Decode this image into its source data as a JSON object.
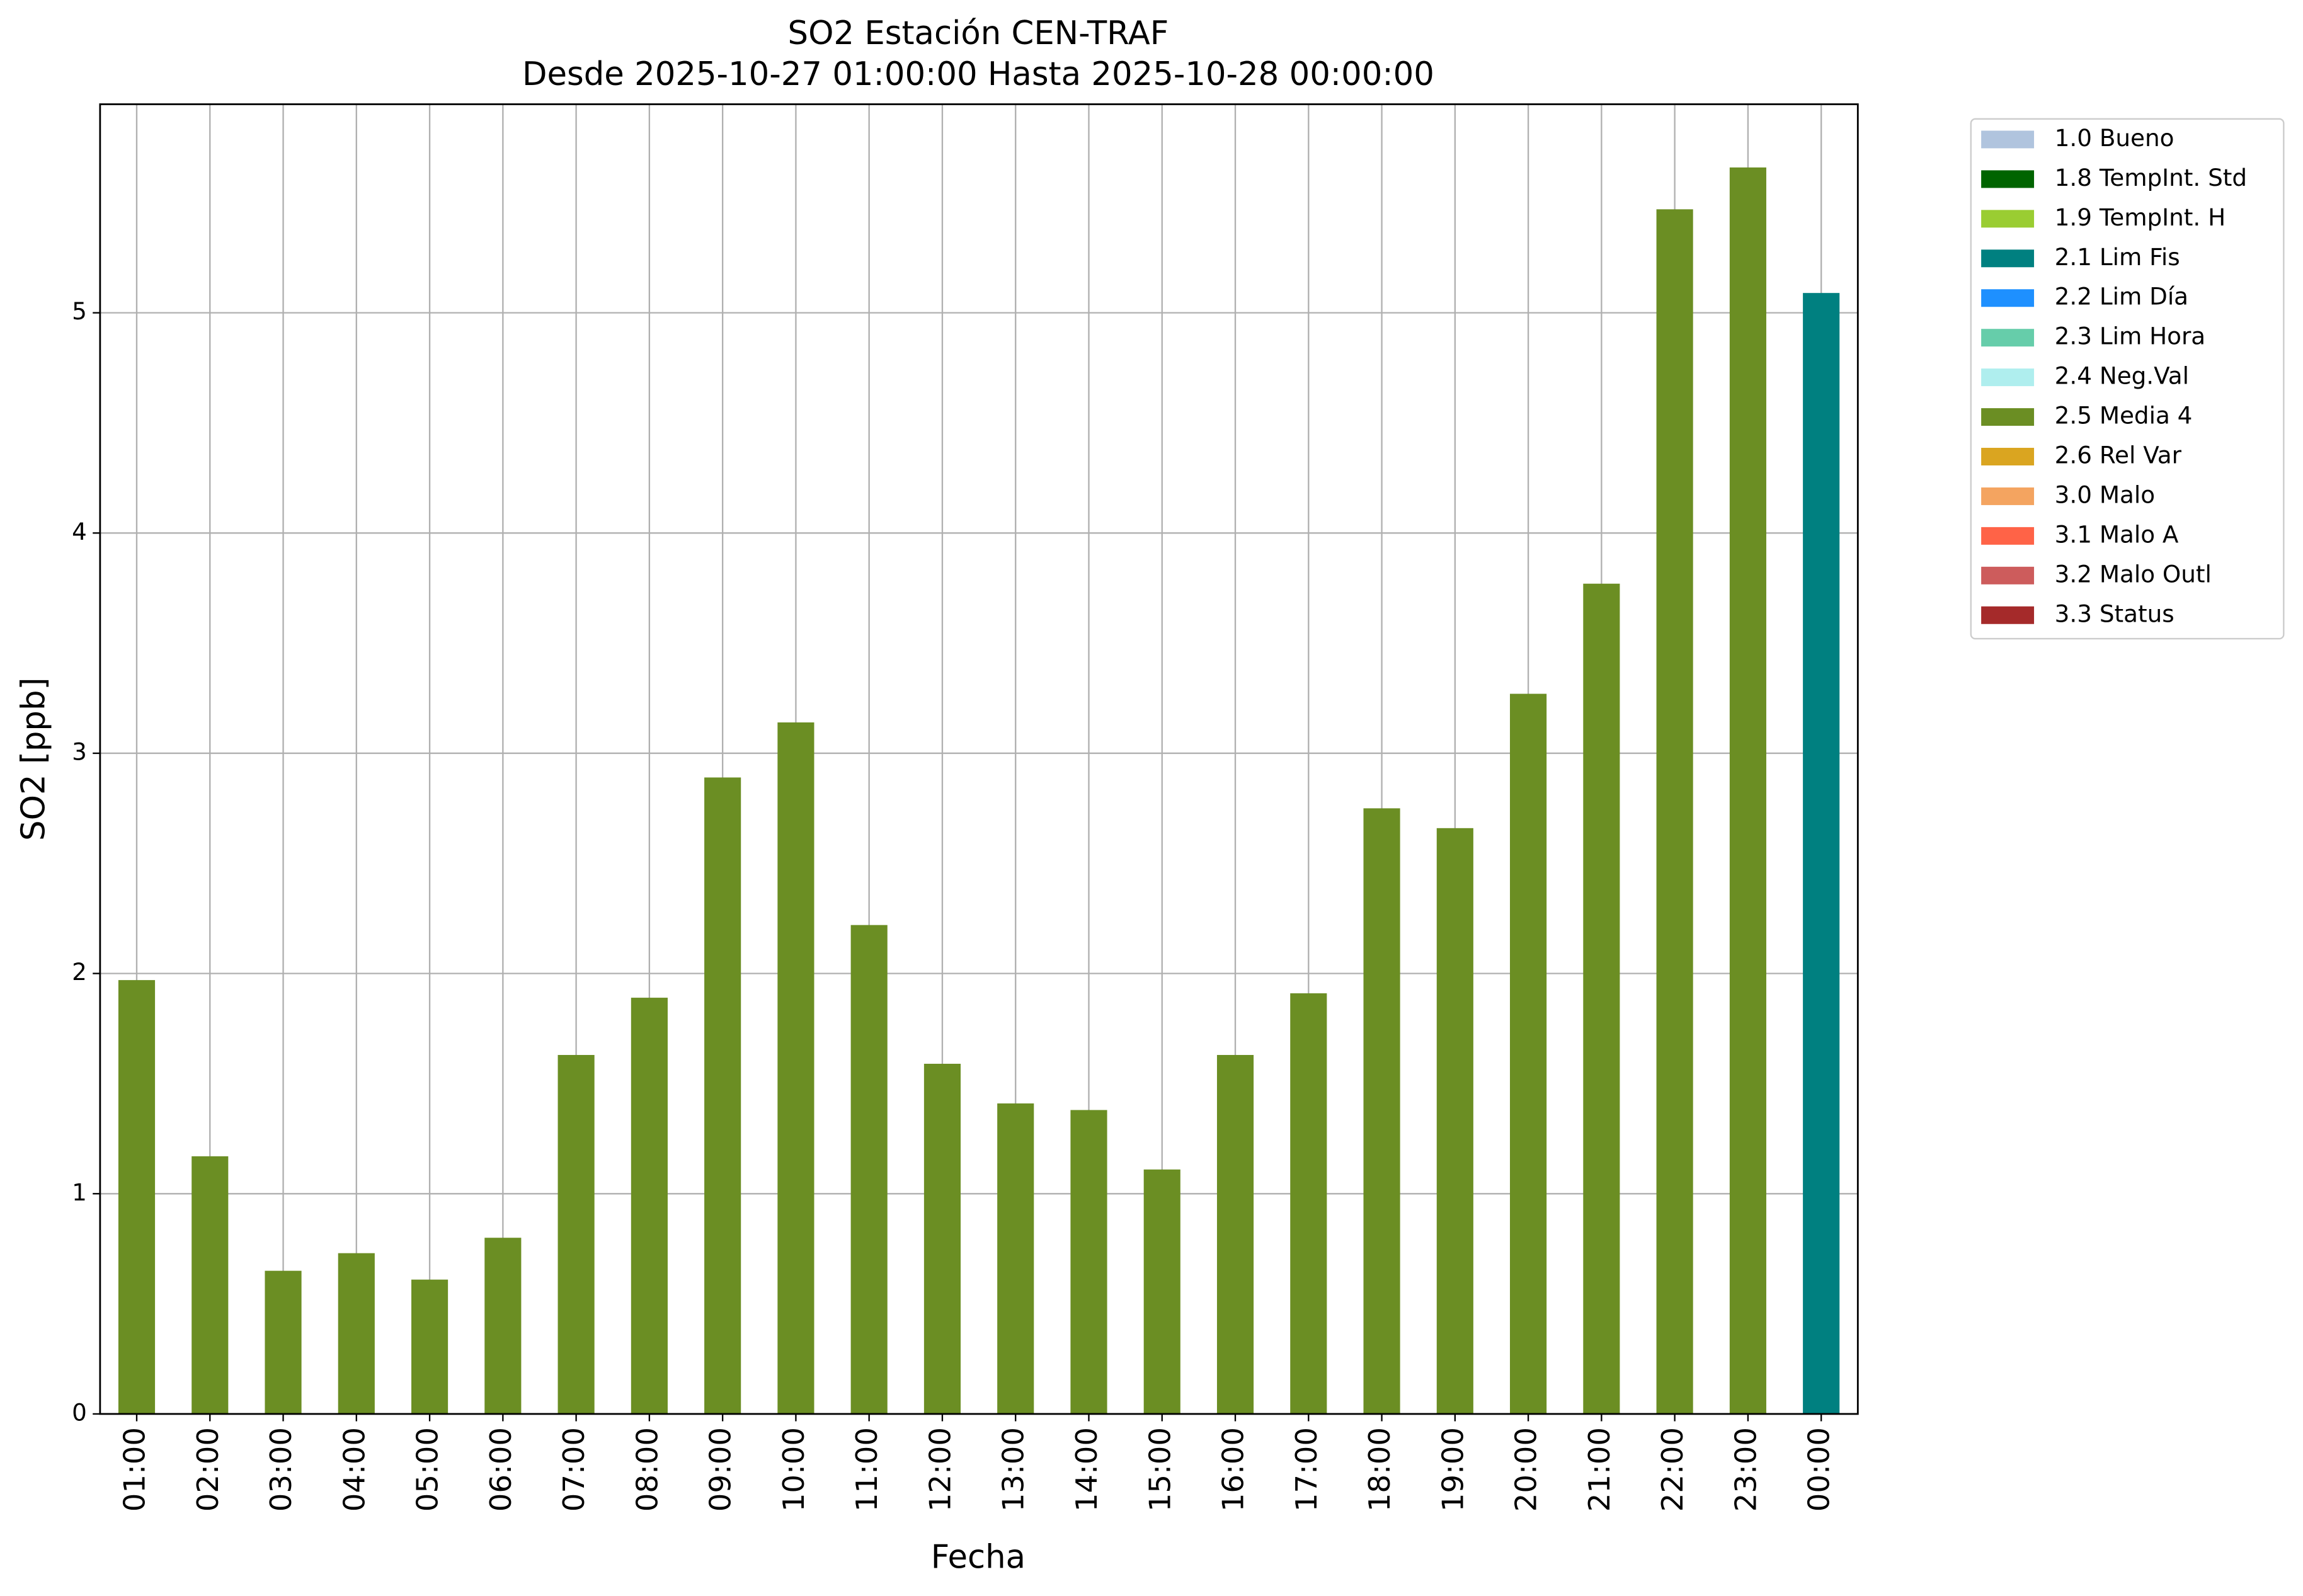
{
  "chart_data": {
    "type": "bar",
    "title": "SO2 Estación CEN-TRAF",
    "subtitle": "Desde 2025-10-27 01:00:00 Hasta 2025-10-28 00:00:00",
    "xlabel": "Fecha",
    "ylabel": "SO2 [ppb]",
    "categories": [
      "01:00",
      "02:00",
      "03:00",
      "04:00",
      "05:00",
      "06:00",
      "07:00",
      "08:00",
      "09:00",
      "10:00",
      "11:00",
      "12:00",
      "13:00",
      "14:00",
      "15:00",
      "16:00",
      "17:00",
      "18:00",
      "19:00",
      "20:00",
      "21:00",
      "22:00",
      "23:00",
      "00:00"
    ],
    "values": [
      1.97,
      1.17,
      0.65,
      0.73,
      0.61,
      0.8,
      1.63,
      1.89,
      2.89,
      3.14,
      2.22,
      1.59,
      1.41,
      1.38,
      1.11,
      1.63,
      1.91,
      2.75,
      2.66,
      3.27,
      3.77,
      5.47,
      5.66,
      5.09
    ],
    "colors": [
      "#6b8e23",
      "#6b8e23",
      "#6b8e23",
      "#6b8e23",
      "#6b8e23",
      "#6b8e23",
      "#6b8e23",
      "#6b8e23",
      "#6b8e23",
      "#6b8e23",
      "#6b8e23",
      "#6b8e23",
      "#6b8e23",
      "#6b8e23",
      "#6b8e23",
      "#6b8e23",
      "#6b8e23",
      "#6b8e23",
      "#6b8e23",
      "#6b8e23",
      "#6b8e23",
      "#6b8e23",
      "#6b8e23",
      "#008080"
    ],
    "ylim": [
      0,
      5.947
    ],
    "yticks": [
      0,
      1,
      2,
      3,
      4,
      5
    ],
    "grid": true,
    "legend_position": "outside upper right",
    "legend_items": [
      {
        "label": "1.0 Bueno",
        "color": "#b0c4de"
      },
      {
        "label": "1.8 TempInt. Std",
        "color": "#006400"
      },
      {
        "label": "1.9 TempInt. H",
        "color": "#9acd32"
      },
      {
        "label": "2.1 Lim Fis",
        "color": "#008080"
      },
      {
        "label": "2.2 Lim Día",
        "color": "#1e90ff"
      },
      {
        "label": "2.3 Lim Hora",
        "color": "#66cdaa"
      },
      {
        "label": "2.4 Neg.Val",
        "color": "#afeeee"
      },
      {
        "label": "2.5 Media 4",
        "color": "#6b8e23"
      },
      {
        "label": "2.6 Rel Var",
        "color": "#daa520"
      },
      {
        "label": "3.0 Malo",
        "color": "#f4a460"
      },
      {
        "label": "3.1 Malo A",
        "color": "#ff6347"
      },
      {
        "label": "3.2 Malo Outl",
        "color": "#cd5c5c"
      },
      {
        "label": "3.3 Status",
        "color": "#a52a2a"
      }
    ]
  }
}
